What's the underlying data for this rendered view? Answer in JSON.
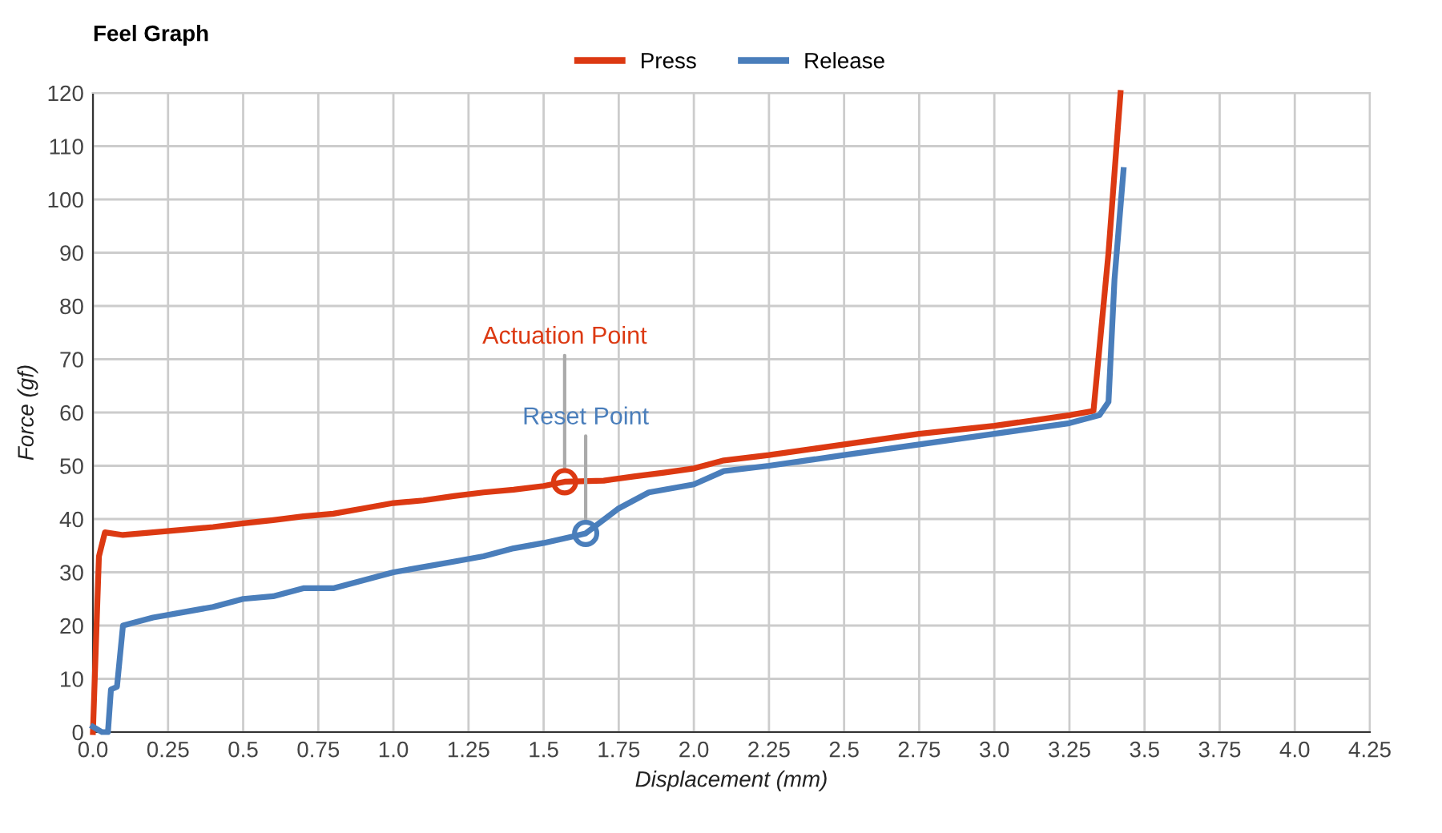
{
  "chart_data": {
    "type": "line",
    "title": "Feel Graph",
    "xlabel": "Displacement (mm)",
    "ylabel": "Force (gf)",
    "xlim": [
      0,
      4.25
    ],
    "ylim": [
      0,
      120
    ],
    "xticks": [
      {
        "value": 0,
        "label": "0.0"
      },
      0.25,
      0.5,
      0.75,
      {
        "value": 1,
        "label": "1.0"
      },
      1.25,
      1.5,
      1.75,
      {
        "value": 2,
        "label": "2.0"
      },
      2.25,
      2.5,
      2.75,
      {
        "value": 3,
        "label": "3.0"
      },
      3.25,
      3.5,
      3.75,
      {
        "value": 4,
        "label": "4.0"
      },
      4.25
    ],
    "yticks": [
      0,
      10,
      20,
      30,
      40,
      50,
      60,
      70,
      80,
      90,
      100,
      110,
      120
    ],
    "grid": true,
    "legend": "top",
    "marker": "none",
    "line_style": "solid",
    "series": [
      {
        "name": "Press",
        "color": "#dc3912",
        "x": [
          0,
          0.02,
          0.04,
          0.1,
          0.2,
          0.3,
          0.4,
          0.5,
          0.6,
          0.7,
          0.8,
          0.9,
          1.0,
          1.1,
          1.2,
          1.3,
          1.4,
          1.5,
          1.57,
          1.7,
          1.8,
          1.9,
          2.0,
          2.1,
          2.25,
          2.5,
          2.75,
          3.0,
          3.25,
          3.33,
          3.38,
          3.42
        ],
        "values": [
          0,
          33,
          37.5,
          37,
          37.5,
          38,
          38.5,
          39.2,
          39.8,
          40.5,
          41,
          42,
          43,
          43.5,
          44.3,
          45,
          45.5,
          46.2,
          47,
          47.2,
          48,
          48.7,
          49.5,
          51,
          52,
          54,
          56,
          57.5,
          59.5,
          60.3,
          90,
          120
        ]
      },
      {
        "name": "Release",
        "color": "#4a7ebb",
        "x": [
          0,
          0.03,
          0.05,
          0.06,
          0.08,
          0.1,
          0.2,
          0.3,
          0.4,
          0.5,
          0.6,
          0.7,
          0.8,
          0.9,
          1.0,
          1.1,
          1.2,
          1.3,
          1.4,
          1.5,
          1.58,
          1.64,
          1.75,
          1.85,
          2.0,
          2.1,
          2.25,
          2.5,
          2.75,
          3.0,
          3.25,
          3.35,
          3.38,
          3.4,
          3.43
        ],
        "values": [
          1,
          0,
          0,
          8,
          8.5,
          20,
          21.5,
          22.5,
          23.5,
          25,
          25.5,
          27,
          27,
          28.5,
          30,
          31,
          32,
          33,
          34.5,
          35.5,
          36.5,
          37.3,
          42,
          45,
          46.5,
          49,
          50,
          52,
          54,
          56,
          58,
          59.5,
          62,
          85,
          105.5
        ]
      }
    ],
    "annotations": [
      {
        "text": "Actuation Point",
        "x": 1.57,
        "y": 47
      },
      {
        "text": "Reset Point",
        "x": 1.64,
        "y": 37.3
      }
    ]
  }
}
